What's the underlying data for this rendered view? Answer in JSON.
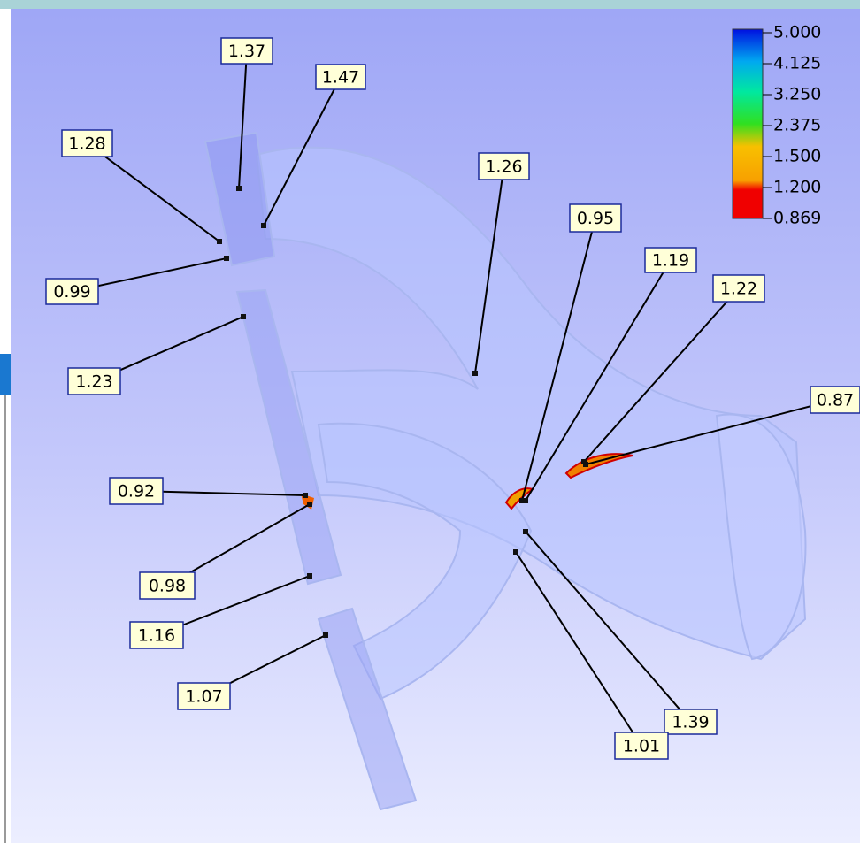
{
  "legend": {
    "labels": [
      "5.000",
      "4.125",
      "3.250",
      "2.375",
      "1.500",
      "1.200",
      "0.869"
    ]
  },
  "probes": [
    "1.37",
    "1.47",
    "1.28",
    "0.99",
    "1.26",
    "0.95",
    "1.19",
    "1.22",
    "0.87",
    "1.23",
    "0.92",
    "0.98",
    "1.16",
    "1.07",
    "1.39",
    "1.01"
  ]
}
